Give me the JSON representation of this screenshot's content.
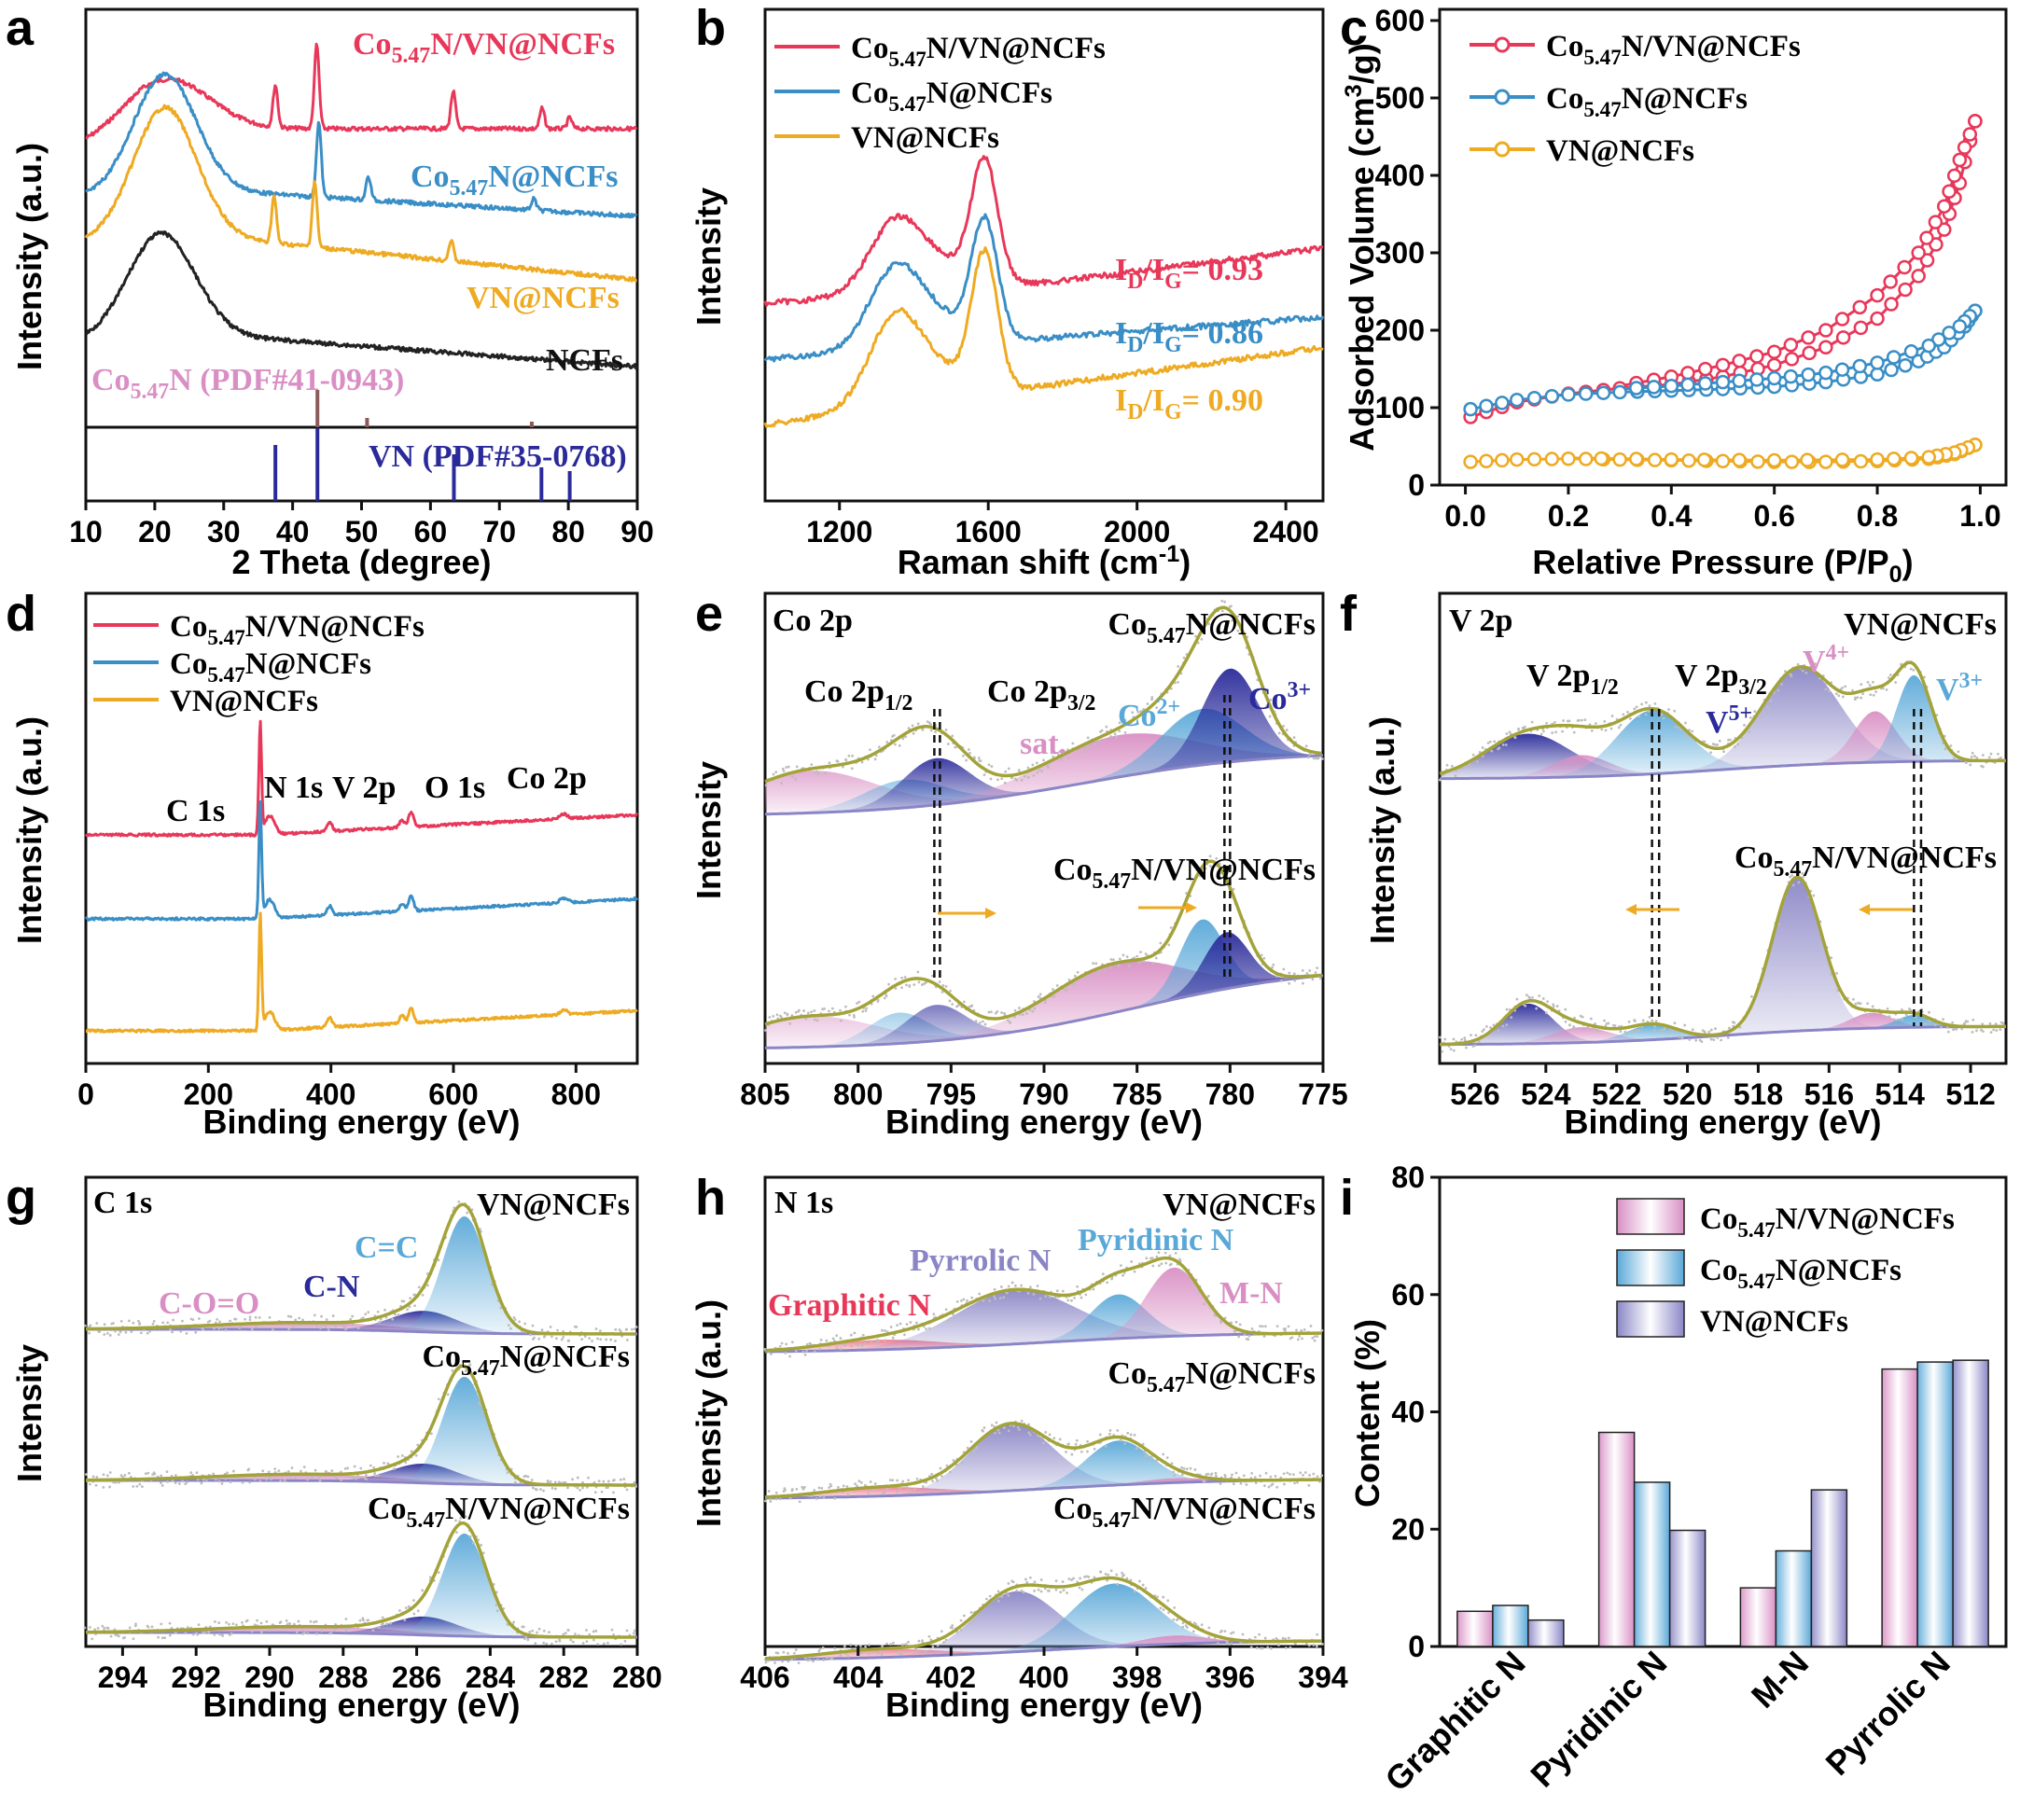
{
  "colors": {
    "red": "#e8385a",
    "blue": "#3a8ec6",
    "orange": "#eeaa22",
    "black": "#222222",
    "pink": "#d98fc4",
    "navy": "#2a2a9a",
    "brown": "#8b5a5a",
    "olive": "#a3a33a",
    "violet": "#8a86c6",
    "lightblue": "#5aa8d8"
  },
  "panel_letters": [
    "a",
    "b",
    "c",
    "d",
    "e",
    "f",
    "g",
    "h",
    "i"
  ],
  "chart_data": [
    {
      "panel": "a",
      "type": "line",
      "xlabel": "2 Theta (degree)",
      "ylabel": "Intensity (a.u.)",
      "xlim": [
        10,
        90
      ],
      "xticks": [
        "10",
        "20",
        "30",
        "40",
        "50",
        "60",
        "70",
        "80",
        "90"
      ],
      "series": [
        {
          "name": "Co5.47N/VN@NCFs",
          "peaks": [
            37.5,
            43.5,
            63.3,
            76.2,
            80.2
          ]
        },
        {
          "name": "Co5.47N@NCFs",
          "peaks": [
            43.8,
            51.0,
            75.0
          ]
        },
        {
          "name": "VN@NCFs",
          "peaks": [
            37.3,
            43.2,
            63.0
          ]
        },
        {
          "name": "NCFs",
          "peaks": []
        }
      ],
      "reference_text": [
        "Co",
        "5.47",
        "N (PDF#41-0943)",
        "VN (PDF#35-0768)"
      ],
      "reference_co_lines": [
        43.6,
        50.8,
        74.7
      ],
      "reference_vn_lines": [
        37.5,
        43.6,
        63.4,
        76.1,
        80.2
      ],
      "labels": {
        "s1": "Co",
        "s1sub": "5.47",
        "s1rest": "N/VN@NCFs",
        "s2": "Co",
        "s2sub": "5.47",
        "s2rest": "N@NCFs",
        "s3": "VN@NCFs",
        "s4": "NCFs"
      }
    },
    {
      "panel": "b",
      "type": "line",
      "xlabel": "Raman shift (cm",
      "xlabel_sup": "-1",
      "xlabel_end": ")",
      "ylabel": "Intensity",
      "xlim": [
        1000,
        2500
      ],
      "xticks": [
        "1200",
        "1600",
        "2000",
        "2400"
      ],
      "series": [
        {
          "name": "Co5.47N/VN@NCFs",
          "id_ig": "0.93"
        },
        {
          "name": "Co5.47N@NCFs",
          "id_ig": "0.86"
        },
        {
          "name": "VN@NCFs",
          "id_ig": "0.90"
        }
      ],
      "legend": [
        "Co5.47N/VN@NCFs",
        "Co5.47N@NCFs",
        "VN@NCFs"
      ],
      "ratio_text": [
        "I",
        "D",
        "/I",
        "G",
        "= 0.93",
        "= 0.86",
        "= 0.90"
      ]
    },
    {
      "panel": "c",
      "type": "line",
      "xlabel": "Relative Pressure (P/P",
      "xlabel_sub": "0",
      "xlabel_end": ")",
      "ylabel": "Adsorbed Volume (cm",
      "ylabel_sup": "3",
      "ylabel_end": "/g)",
      "xlim": [
        -0.05,
        1.05
      ],
      "ylim": [
        0,
        600
      ],
      "xticks": [
        "0.0",
        "0.2",
        "0.4",
        "0.6",
        "0.8",
        "1.0"
      ],
      "yticks": [
        "0",
        "100",
        "200",
        "300",
        "400",
        "500",
        "600"
      ],
      "series": [
        {
          "name": "Co5.47N/VN@NCFs",
          "adsorption": [
            [
              0.01,
              88
            ],
            [
              0.1,
              107
            ],
            [
              0.2,
              118
            ],
            [
              0.3,
              125
            ],
            [
              0.4,
              130
            ],
            [
              0.5,
              140
            ],
            [
              0.6,
              155
            ],
            [
              0.7,
              178
            ],
            [
              0.8,
              215
            ],
            [
              0.88,
              270
            ],
            [
              0.93,
              330
            ],
            [
              0.96,
              390
            ],
            [
              0.99,
              470
            ]
          ],
          "desorption": [
            [
              0.99,
              470
            ],
            [
              0.96,
              420
            ],
            [
              0.93,
              360
            ],
            [
              0.88,
              300
            ],
            [
              0.8,
              245
            ],
            [
              0.7,
              200
            ],
            [
              0.6,
              172
            ],
            [
              0.5,
              155
            ],
            [
              0.4,
              140
            ],
            [
              0.3,
              128
            ]
          ]
        },
        {
          "name": "Co5.47N@NCFs",
          "adsorption": [
            [
              0.01,
              98
            ],
            [
              0.1,
              110
            ],
            [
              0.2,
              117
            ],
            [
              0.3,
              120
            ],
            [
              0.4,
              122
            ],
            [
              0.5,
              124
            ],
            [
              0.6,
              127
            ],
            [
              0.7,
              133
            ],
            [
              0.8,
              143
            ],
            [
              0.88,
              160
            ],
            [
              0.93,
              178
            ],
            [
              0.97,
              205
            ],
            [
              0.99,
              225
            ]
          ],
          "desorption": [
            [
              0.99,
              225
            ],
            [
              0.96,
              205
            ],
            [
              0.9,
              180
            ],
            [
              0.8,
              158
            ],
            [
              0.7,
              145
            ],
            [
              0.6,
              138
            ],
            [
              0.5,
              133
            ],
            [
              0.4,
              128
            ],
            [
              0.3,
              124
            ]
          ]
        },
        {
          "name": "VN@NCFs",
          "adsorption": [
            [
              0.01,
              30
            ],
            [
              0.1,
              33
            ],
            [
              0.2,
              34
            ],
            [
              0.3,
              33
            ],
            [
              0.4,
              32
            ],
            [
              0.5,
              31
            ],
            [
              0.6,
              30
            ],
            [
              0.7,
              30
            ],
            [
              0.8,
              31
            ],
            [
              0.9,
              34
            ],
            [
              0.95,
              40
            ],
            [
              0.99,
              52
            ]
          ],
          "desorption": [
            [
              0.99,
              52
            ],
            [
              0.95,
              42
            ],
            [
              0.9,
              36
            ],
            [
              0.8,
              33
            ],
            [
              0.6,
              32
            ],
            [
              0.4,
              33
            ],
            [
              0.2,
              35
            ]
          ]
        }
      ],
      "legend": [
        "Co5.47N/VN@NCFs",
        "Co5.47N@NCFs",
        "VN@NCFs"
      ]
    },
    {
      "panel": "d",
      "type": "line",
      "xlabel": "Binding energy (eV)",
      "ylabel": "Intensity (a.u.)",
      "xlim": [
        0,
        900
      ],
      "xticks": [
        "0",
        "200",
        "400",
        "600",
        "800"
      ],
      "peaks": {
        "C 1s": 284.6,
        "N 1s": 398,
        "V 2p": 516,
        "O 1s": 531,
        "Co 2p": 780
      },
      "peak_labels": [
        "C 1s",
        "N 1s",
        "V 2p",
        "O 1s",
        "Co 2p"
      ],
      "legend": [
        "Co5.47N/VN@NCFs",
        "Co5.47N@NCFs",
        "VN@NCFs"
      ]
    },
    {
      "panel": "e",
      "type": "area",
      "xlabel": "Binding energy (eV)",
      "ylabel": "Intensity",
      "xlim": [
        805,
        775
      ],
      "xticks": [
        "805",
        "800",
        "795",
        "790",
        "785",
        "780",
        "775"
      ],
      "title": "Co 2p",
      "samples": [
        "Co5.47N@NCFs",
        "Co5.47N/VN@NCFs"
      ],
      "annotations": [
        "Co 2p",
        "1/2",
        "Co 2p",
        "3/2",
        "sat.",
        "Co",
        "2+",
        "Co",
        "3+"
      ],
      "components_top": [
        [
          802.5,
          3.5,
          0.45,
          "pink"
        ],
        [
          797.5,
          2.2,
          0.3,
          "lightblue"
        ],
        [
          795.8,
          1.8,
          0.5,
          "navy"
        ],
        [
          786,
          4,
          0.45,
          "pink"
        ],
        [
          781.5,
          2.2,
          0.6,
          "lightblue"
        ],
        [
          780,
          1.5,
          1.0,
          "navy"
        ]
      ],
      "components_bottom": [
        [
          802.5,
          3.5,
          0.3,
          "pink"
        ],
        [
          797.8,
          1.6,
          0.3,
          "lightblue"
        ],
        [
          795.8,
          1.6,
          0.35,
          "navy"
        ],
        [
          786.2,
          3.6,
          0.48,
          "pink"
        ],
        [
          781.5,
          1.2,
          0.72,
          "lightblue"
        ],
        [
          780.2,
          1.2,
          0.55,
          "navy"
        ]
      ]
    },
    {
      "panel": "f",
      "type": "area",
      "xlabel": "Binding energy (eV)",
      "ylabel": "Intensity (a.u.)",
      "xlim": [
        527,
        511
      ],
      "xticks": [
        "526",
        "524",
        "522",
        "520",
        "518",
        "516",
        "514",
        "512"
      ],
      "title": "V 2p",
      "samples": [
        "VN@NCFs",
        "Co5.47N/VN@NCFs"
      ],
      "annotations": [
        "V 2p",
        "1/2",
        "V 2p",
        "3/2",
        "V",
        "4+",
        "V",
        "5+",
        "V",
        "3+"
      ],
      "components_top": [
        [
          524.5,
          1.2,
          0.45,
          "navy"
        ],
        [
          523,
          0.8,
          0.22,
          "pink"
        ],
        [
          521,
          1.0,
          0.65,
          "lightblue"
        ],
        [
          516.8,
          1.1,
          1.0,
          "violet"
        ],
        [
          514.7,
          0.6,
          0.52,
          "pink"
        ],
        [
          513.6,
          0.5,
          0.88,
          "lightblue"
        ]
      ],
      "components_bottom": [
        [
          524.5,
          0.7,
          0.26,
          "navy"
        ],
        [
          523,
          0.8,
          0.1,
          "pink"
        ],
        [
          521,
          0.7,
          0.1,
          "lightblue"
        ],
        [
          516.9,
          0.7,
          1.0,
          "violet"
        ],
        [
          514.8,
          0.6,
          0.1,
          "pink"
        ],
        [
          513.6,
          0.5,
          0.08,
          "lightblue"
        ]
      ]
    },
    {
      "panel": "g",
      "type": "area",
      "xlabel": "Binding energy (eV)",
      "ylabel": "Intensity",
      "xlim": [
        295,
        280
      ],
      "xticks": [
        "294",
        "292",
        "290",
        "288",
        "286",
        "284",
        "282",
        "280"
      ],
      "title": "C 1s",
      "samples": [
        "VN@NCFs",
        "Co5.47N@NCFs",
        "Co5.47N/VN@NCFs"
      ],
      "annotations": [
        "C-O=O",
        "C-N",
        "C=C"
      ],
      "components": [
        [
          289,
          2.5,
          0.06,
          "pink"
        ],
        [
          285.8,
          0.9,
          0.18,
          "navy"
        ],
        [
          284.7,
          0.6,
          1.0,
          "lightblue"
        ]
      ]
    },
    {
      "panel": "h",
      "type": "area",
      "xlabel": "Binding energy (eV)",
      "ylabel": "Intensity (a.u.)",
      "xlim": [
        406,
        394
      ],
      "xticks": [
        "406",
        "404",
        "402",
        "400",
        "398",
        "396",
        "394"
      ],
      "title": "N 1s",
      "samples": [
        "VN@NCFs",
        "Co5.47N@NCFs",
        "Co5.47N/VN@NCFs"
      ],
      "annotations": [
        "Graphitic N",
        "Pyrrolic N",
        "Pyridinic N",
        "M-N"
      ],
      "components_top": [
        [
          403.5,
          1.2,
          0.1,
          "red"
        ],
        [
          400.6,
          1.3,
          0.55,
          "violet"
        ],
        [
          398.4,
          0.6,
          0.45,
          "lightblue"
        ],
        [
          397.2,
          0.6,
          0.7,
          "pink"
        ]
      ],
      "components_mid": [
        [
          403.5,
          1.2,
          0.1,
          "red"
        ],
        [
          400.7,
          0.9,
          0.75,
          "violet"
        ],
        [
          398.4,
          0.7,
          0.5,
          "lightblue"
        ],
        [
          397.2,
          0.7,
          0.05,
          "pink"
        ]
      ],
      "components_bot": [
        [
          403.5,
          1.2,
          0.1,
          "red"
        ],
        [
          400.6,
          0.9,
          0.72,
          "violet"
        ],
        [
          398.5,
          0.9,
          0.75,
          "lightblue"
        ],
        [
          397.2,
          0.7,
          0.1,
          "pink"
        ]
      ]
    },
    {
      "panel": "i",
      "type": "bar",
      "ylabel": "Content (%)",
      "categories": [
        "Graphitic N",
        "Pyridinic N",
        "M-N",
        "Pyrrolic N"
      ],
      "series": [
        {
          "name": "Co5.47N/VN@NCFs",
          "values": [
            6,
            36.5,
            10,
            47.3
          ]
        },
        {
          "name": "Co5.47N@NCFs",
          "values": [
            7,
            28,
            16.3,
            48.5
          ]
        },
        {
          "name": "VN@NCFs",
          "values": [
            4.5,
            19.8,
            26.7,
            48.8
          ]
        }
      ],
      "ylim": [
        0,
        80
      ],
      "yticks": [
        "0",
        "20",
        "40",
        "60",
        "80"
      ],
      "legend": [
        "Co5.47N/VN@NCFs",
        "Co5.47N@NCFs",
        "VN@NCFs"
      ]
    }
  ]
}
